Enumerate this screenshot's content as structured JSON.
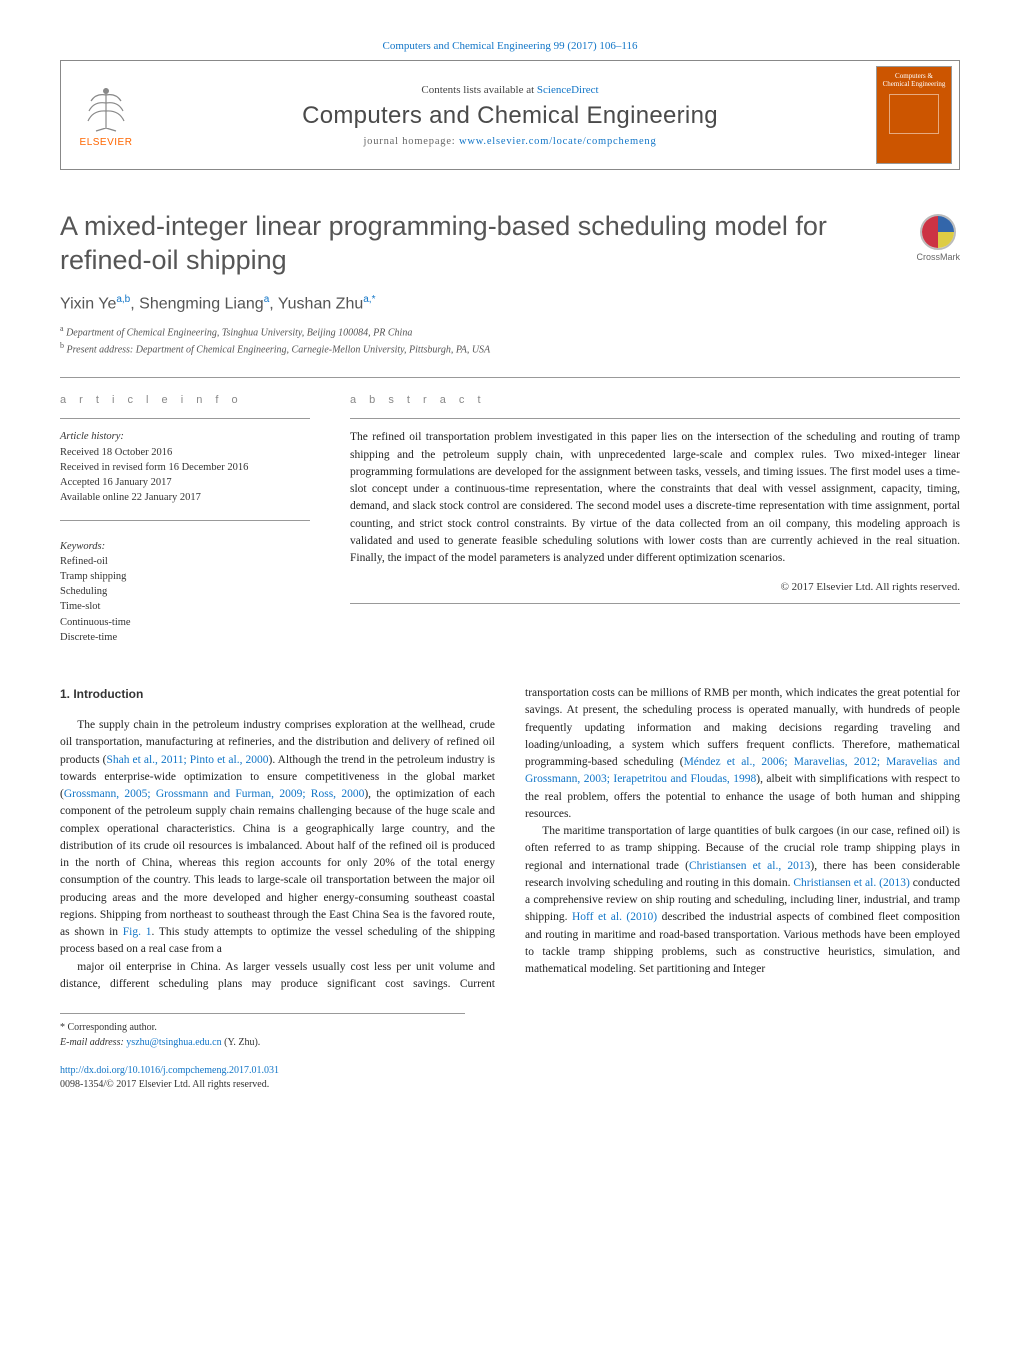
{
  "journal_ref": "Computers and Chemical Engineering 99 (2017) 106–116",
  "header": {
    "elsevier_label": "ELSEVIER",
    "contents_prefix": "Contents lists available at ",
    "contents_link": "ScienceDirect",
    "journal_title": "Computers and Chemical Engineering",
    "homepage_prefix": "journal homepage: ",
    "homepage_link": "www.elsevier.com/locate/compchemeng",
    "cover_text": "Computers & Chemical Engineering"
  },
  "crossmark_label": "CrossMark",
  "title": "A mixed-integer linear programming-based scheduling model for refined-oil shipping",
  "authors_html": "Yixin Ye<sup>a,b</sup>, Shengming Liang<sup>a</sup>, Yushan Zhu<sup>a,*</sup>",
  "affiliations": {
    "a": "Department of Chemical Engineering, Tsinghua University, Beijing 100084, PR China",
    "b": "Present address: Department of Chemical Engineering, Carnegie-Mellon University, Pittsburgh, PA, USA"
  },
  "article_info_label": "a r t i c l e   i n f o",
  "abstract_label": "a b s t r a c t",
  "history": {
    "head": "Article history:",
    "received": "Received 18 October 2016",
    "revised": "Received in revised form 16 December 2016",
    "accepted": "Accepted 16 January 2017",
    "online": "Available online 22 January 2017"
  },
  "keywords": {
    "head": "Keywords:",
    "items": [
      "Refined-oil",
      "Tramp shipping",
      "Scheduling",
      "Time-slot",
      "Continuous-time",
      "Discrete-time"
    ]
  },
  "abstract": "The refined oil transportation problem investigated in this paper lies on the intersection of the scheduling and routing of tramp shipping and the petroleum supply chain, with unprecedented large-scale and complex rules. Two mixed-integer linear programming formulations are developed for the assignment between tasks, vessels, and timing issues. The first model uses a time-slot concept under a continuous-time representation, where the constraints that deal with vessel assignment, capacity, timing, demand, and slack stock control are considered. The second model uses a discrete-time representation with time assignment, portal counting, and strict stock control constraints. By virtue of the data collected from an oil company, this modeling approach is validated and used to generate feasible scheduling solutions with lower costs than are currently achieved in the real situation. Finally, the impact of the model parameters is analyzed under different optimization scenarios.",
  "copyright": "© 2017 Elsevier Ltd. All rights reserved.",
  "section1_heading": "1. Introduction",
  "para1": "The supply chain in the petroleum industry comprises exploration at the wellhead, crude oil transportation, manufacturing at refineries, and the distribution and delivery of refined oil products (Shah et al., 2011; Pinto et al., 2000). Although the trend in the petroleum industry is towards enterprise-wide optimization to ensure competitiveness in the global market (Grossmann, 2005; Grossmann and Furman, 2009; Ross, 2000), the optimization of each component of the petroleum supply chain remains challenging because of the huge scale and complex operational characteristics. China is a geographically large country, and the distribution of its crude oil resources is imbalanced. About half of the refined oil is produced in the north of China, whereas this region accounts for only 20% of the total energy consumption of the country. This leads to large-scale oil transportation between the major oil producing areas and the more developed and higher energy-consuming southeast coastal regions. Shipping from northeast to southeast through the East China Sea is the favored route, as shown in Fig. 1. This study attempts to optimize the vessel scheduling of the shipping process based on a real case from a",
  "para1_refs": [
    "Shah et al., 2011; Pinto et al., 2000",
    "Grossmann, 2005; Grossmann and Furman, 2009; Ross, 2000",
    "Fig. 1"
  ],
  "para2": "major oil enterprise in China. As larger vessels usually cost less per unit volume and distance, different scheduling plans may produce significant cost savings. Current transportation costs can be millions of RMB per month, which indicates the great potential for savings. At present, the scheduling process is operated manually, with hundreds of people frequently updating information and making decisions regarding traveling and loading/unloading, a system which suffers frequent conflicts. Therefore, mathematical programming-based scheduling (Méndez et al., 2006; Maravelias, 2012; Maravelias and Grossmann, 2003; Ierapetritou and Floudas, 1998), albeit with simplifications with respect to the real problem, offers the potential to enhance the usage of both human and shipping resources.",
  "para2_refs": [
    "Méndez et al., 2006; Maravelias, 2012; Maravelias and Grossmann, 2003; Ierapetritou and Floudas, 1998"
  ],
  "para3": "The maritime transportation of large quantities of bulk cargoes (in our case, refined oil) is often referred to as tramp shipping. Because of the crucial role tramp shipping plays in regional and international trade (Christiansen et al., 2013), there has been considerable research involving scheduling and routing in this domain. Christiansen et al. (2013) conducted a comprehensive review on ship routing and scheduling, including liner, industrial, and tramp shipping. Hoff et al. (2010) described the industrial aspects of combined fleet composition and routing in maritime and road-based transportation. Various methods have been employed to tackle tramp shipping problems, such as constructive heuristics, simulation, and mathematical modeling. Set partitioning and Integer",
  "para3_refs": [
    "Christiansen et al., 2013",
    "Christiansen et al. (2013)",
    "Hoff et al. (2010)"
  ],
  "footnote_corr": "* Corresponding author.",
  "footnote_email_label": "E-mail address: ",
  "footnote_email": "yszhu@tsinghua.edu.cn",
  "footnote_email_name": " (Y. Zhu).",
  "doi_link": "http://dx.doi.org/10.1016/j.compchemeng.2017.01.031",
  "doi_issn": "0098-1354/© 2017 Elsevier Ltd. All rights reserved.",
  "colors": {
    "link": "#1175c7",
    "elsevier_orange": "#ff6600",
    "cover_bg": "#cc5500",
    "body_text": "#222222",
    "muted": "#555555"
  }
}
